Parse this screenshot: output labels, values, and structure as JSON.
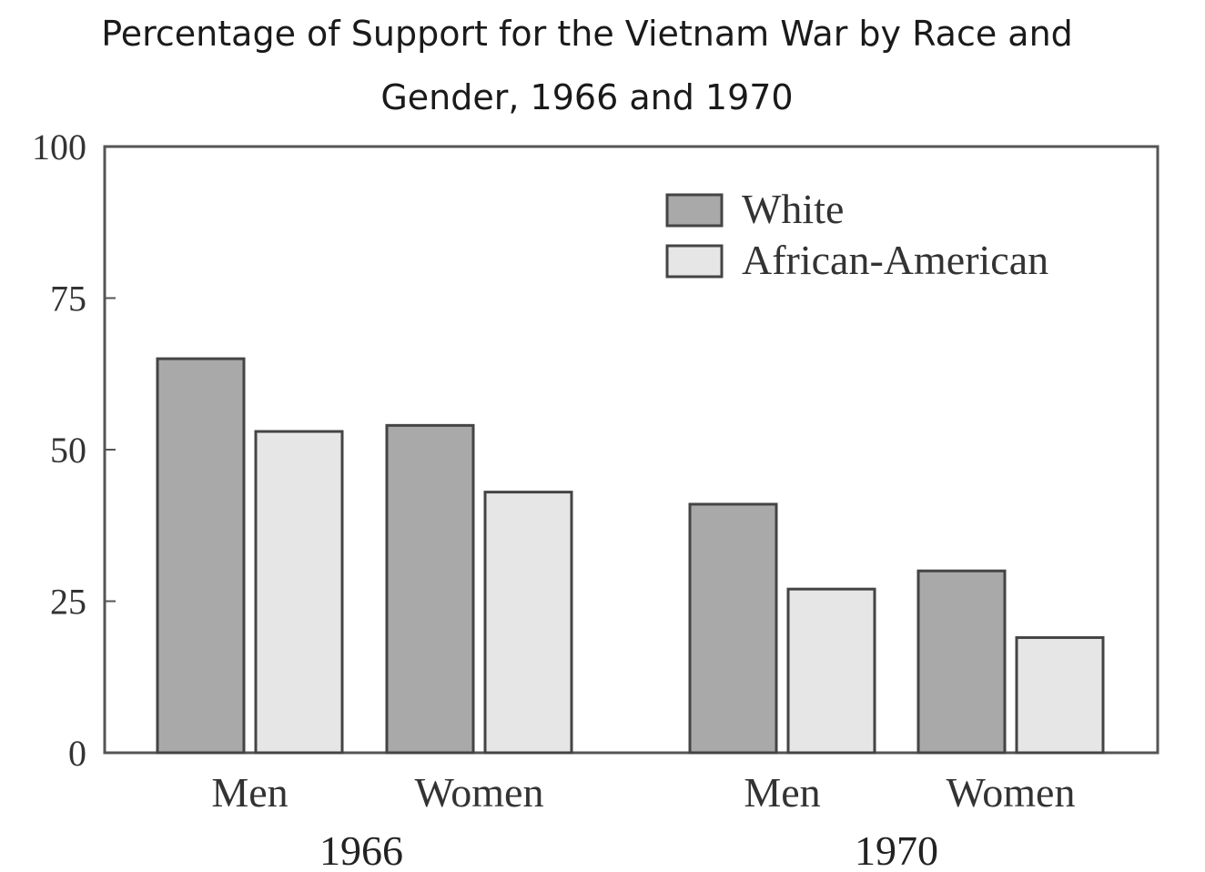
{
  "chart_data": {
    "type": "bar",
    "title": "Percentage of Support for the Vietnam War by Race and Gender, 1966 and 1970",
    "title_lines": [
      "Percentage of Support for the Vietnam War by Race and",
      "Gender, 1966 and 1970"
    ],
    "categories": [
      "Men",
      "Women",
      "Men",
      "Women"
    ],
    "category_groups": [
      {
        "label": "1966",
        "categories": [
          "Men",
          "Women"
        ]
      },
      {
        "label": "1970",
        "categories": [
          "Men",
          "Women"
        ]
      }
    ],
    "series": [
      {
        "name": "White",
        "color": "#a9a9a9",
        "values": [
          65,
          54,
          41,
          30
        ]
      },
      {
        "name": "African-American",
        "color": "#e6e6e6",
        "values": [
          53,
          43,
          27,
          19
        ]
      }
    ],
    "ylim": [
      0,
      100
    ],
    "yticks": [
      "0",
      "25",
      "50",
      "75",
      "100"
    ],
    "xlabel": "",
    "ylabel": "",
    "grid": false,
    "legend_position": "top-right"
  }
}
